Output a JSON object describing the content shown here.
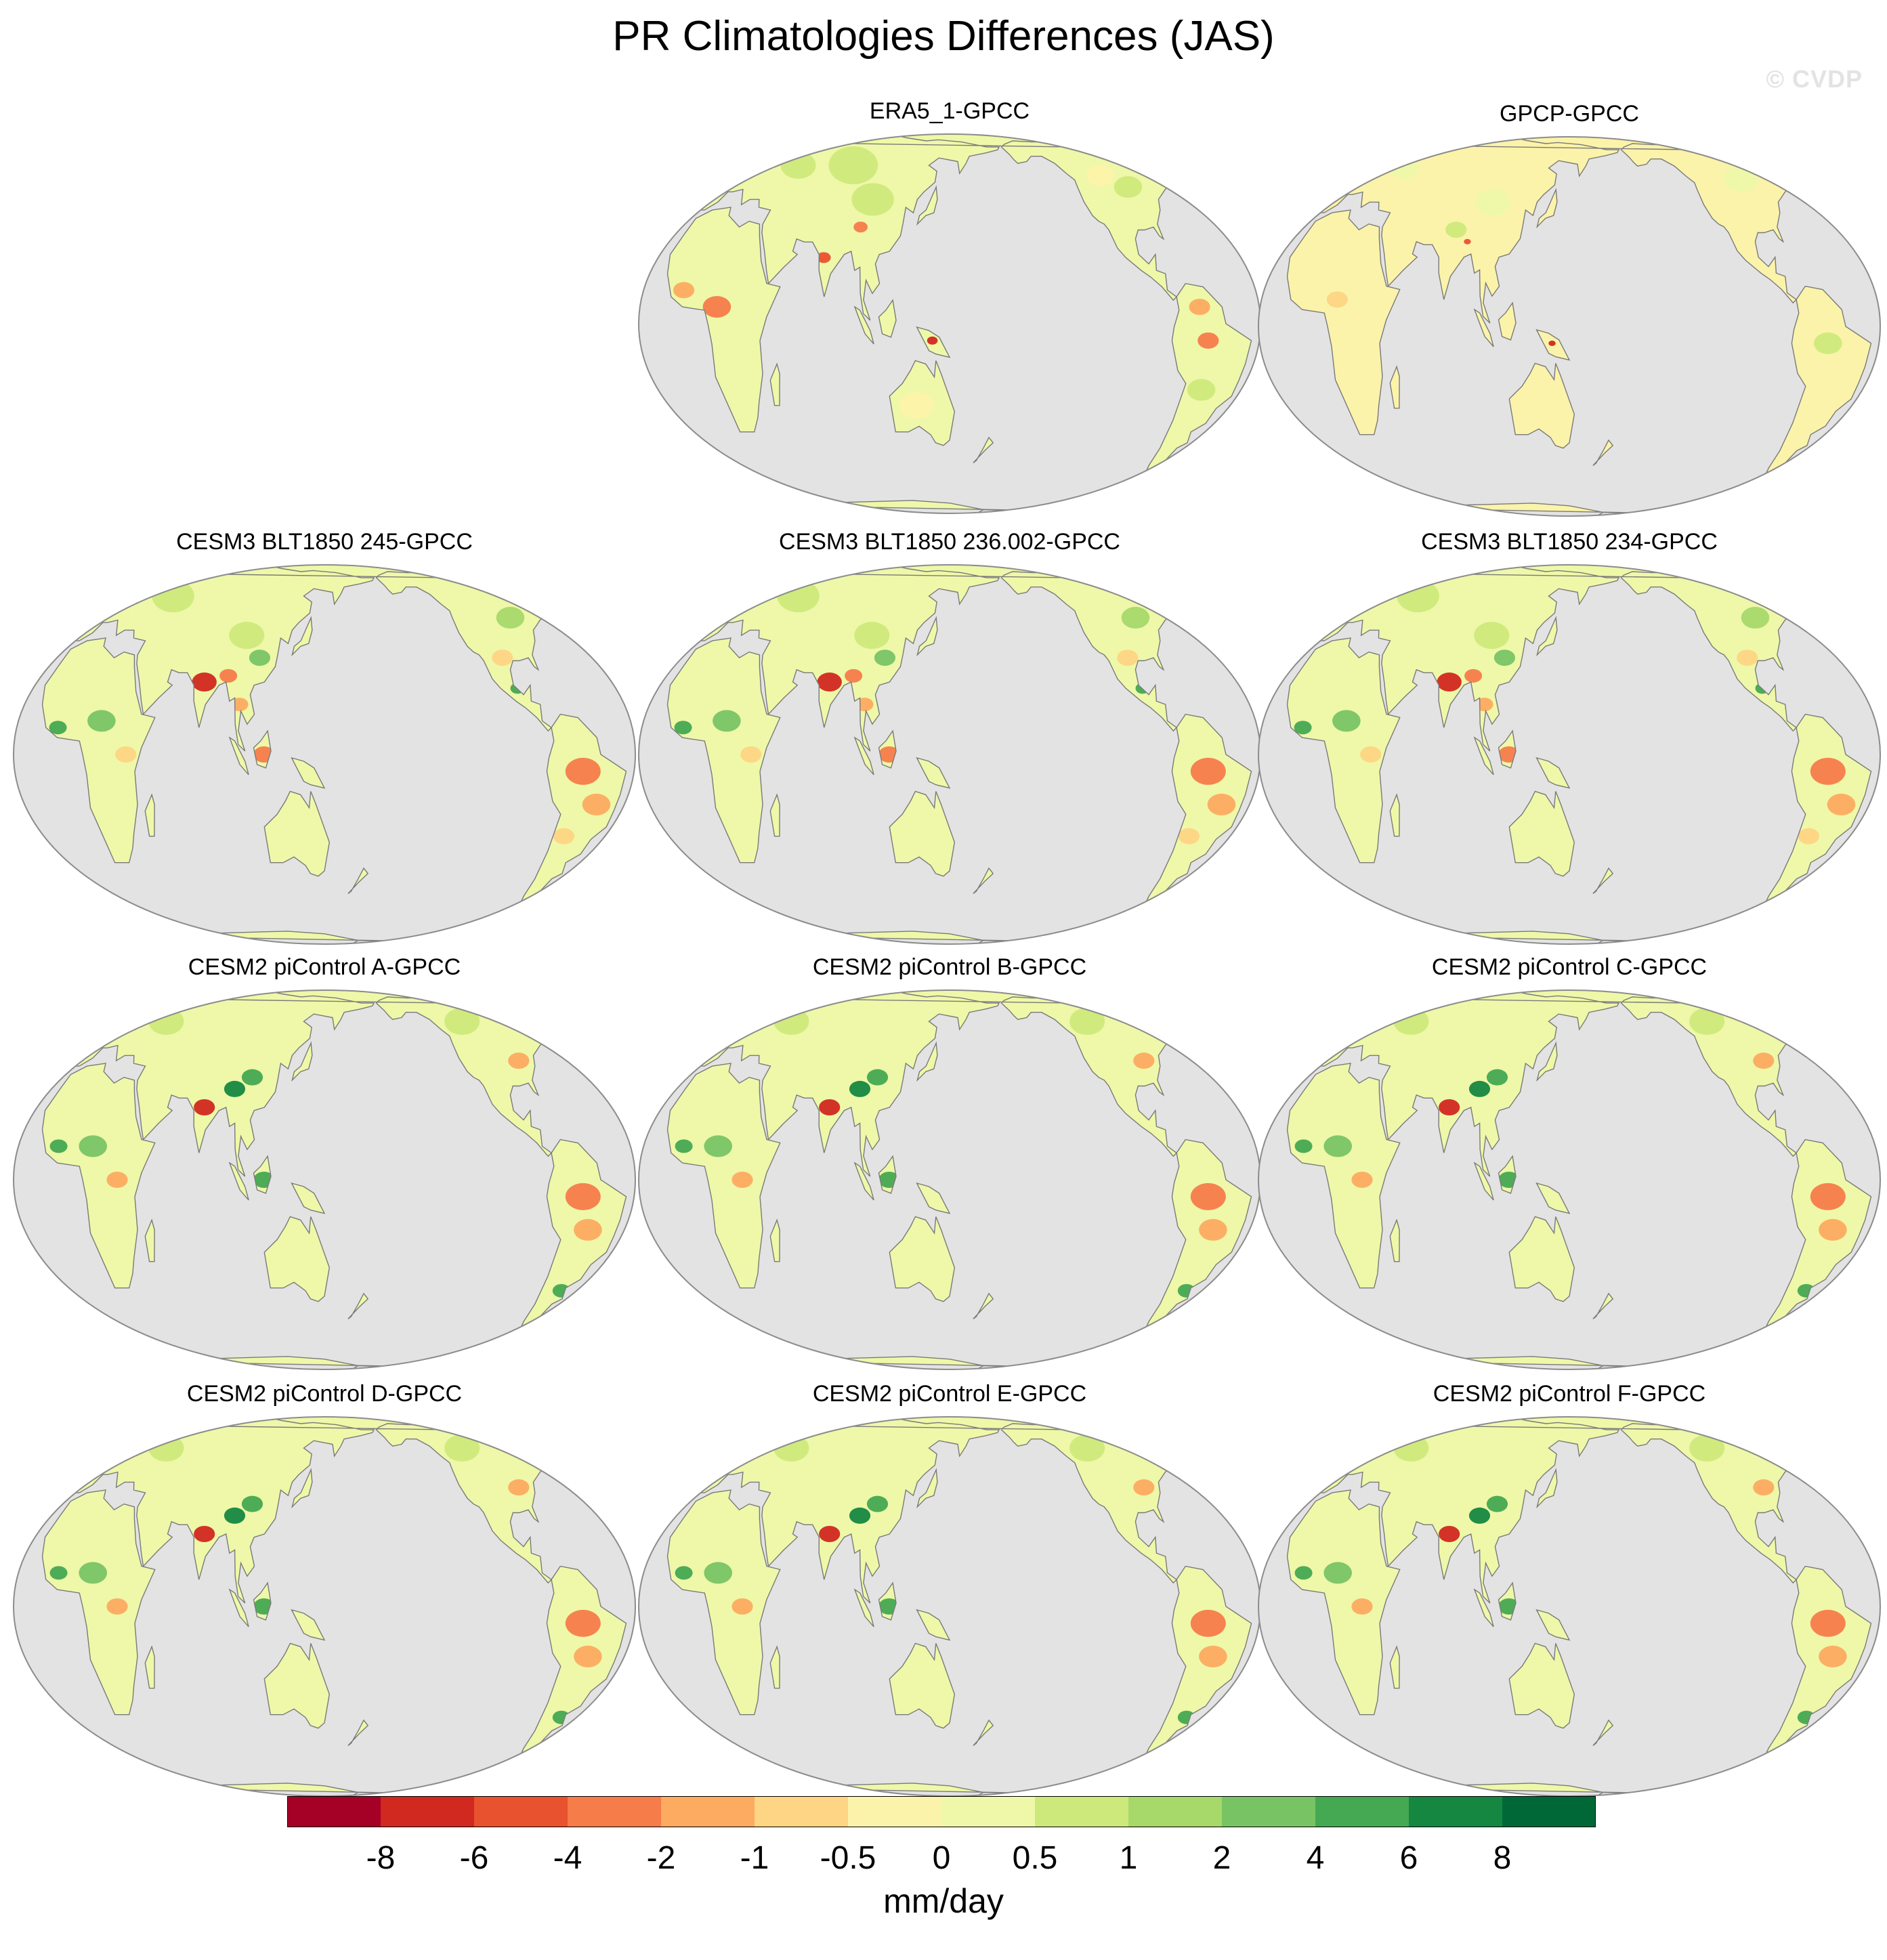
{
  "title": "PR Climatologies Differences (JAS)",
  "credit": "© CVDP",
  "panels": [
    {
      "title": "ERA5_1-GPCC",
      "variant": 0
    },
    {
      "title": "GPCP-GPCC",
      "variant": 1
    },
    {
      "title": "CESM3 BLT1850 245-GPCC",
      "variant": 2
    },
    {
      "title": "CESM3 BLT1850 236.002-GPCC",
      "variant": 2
    },
    {
      "title": "CESM3 BLT1850 234-GPCC",
      "variant": 2
    },
    {
      "title": "CESM2 piControl A-GPCC",
      "variant": 3
    },
    {
      "title": "CESM2 piControl B-GPCC",
      "variant": 3
    },
    {
      "title": "CESM2 piControl C-GPCC",
      "variant": 3
    },
    {
      "title": "CESM2 piControl D-GPCC",
      "variant": 3
    },
    {
      "title": "CESM2 piControl E-GPCC",
      "variant": 3
    },
    {
      "title": "CESM2 piControl F-GPCC",
      "variant": 3
    }
  ],
  "colorbar": {
    "units": "mm/day",
    "labels": [
      "-8",
      "-6",
      "-4",
      "-2",
      "-1",
      "-0.5",
      "0",
      "0.5",
      "1",
      "2",
      "4",
      "6",
      "8"
    ],
    "colors": [
      "#a50026",
      "#d1281f",
      "#e8522f",
      "#f67c4a",
      "#fcab60",
      "#fdd584",
      "#fbf3a9",
      "#eef8a8",
      "#cde97b",
      "#a6d86a",
      "#78c465",
      "#45a852",
      "#158741",
      "#006837"
    ]
  },
  "map_colors": {
    "ocean": "#e3e3e3",
    "border": "#8c8c8c",
    "coast": "#7a7a7a"
  }
}
